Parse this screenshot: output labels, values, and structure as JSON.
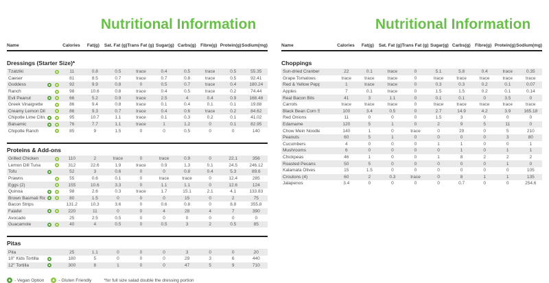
{
  "title": "Nutritional Information",
  "columns": [
    "Name",
    "Calories",
    "Fat(g)",
    "Sat. Fat (g)",
    "Trans Fat (g)",
    "Sugar(g)",
    "Carbs(g)",
    "Fibre(g)",
    "Protein(g)",
    "Sodium(mg)"
  ],
  "legend": {
    "vegan_label": "- Vegan Option",
    "gluten_label": "- Gluten Friendly",
    "footnote": "*for full size salad double the dressing portion"
  },
  "colors": {
    "accent_green": "#6abf4b",
    "vegan_dot": "#55a33c",
    "gluten_dot": "#8dc63f",
    "row_stripe": "#e9e9e9",
    "rule": "#221f1f"
  },
  "pages": [
    {
      "show_legend": true,
      "sections": [
        {
          "title": "Dressings (Starter Size)*",
          "rows": [
            {
              "name": "Tzatziki",
              "vegan": false,
              "gluten": true,
              "values": [
                "11",
                "0.8",
                "0.5",
                "trace",
                "0.4",
                "0.5",
                "trace",
                "0.5",
                "55.35"
              ]
            },
            {
              "name": "Caeser",
              "vegan": false,
              "gluten": false,
              "values": [
                "81",
                "8.5",
                "0.7",
                "trace",
                "0.7",
                "0.8",
                "trace",
                "0.5",
                "92.41"
              ]
            },
            {
              "name": "Goddess",
              "vegan": true,
              "gluten": true,
              "values": [
                "92",
                "9.9",
                "0.8",
                "0",
                "0.5",
                "0.7",
                "trace",
                "0.4",
                "180.24"
              ]
            },
            {
              "name": "Ranch",
              "vegan": false,
              "gluten": true,
              "values": [
                "98",
                "10.6",
                "0.8",
                "trace",
                "0.4",
                "0.5",
                "trace",
                "0.2",
                "74.44"
              ]
            },
            {
              "name": "Evil Peanut",
              "vegan": true,
              "gluten": true,
              "values": [
                "66",
                "5.2",
                "0.9",
                "trace",
                "2.5",
                "4",
                "0.4",
                "0.9",
                "168.48"
              ]
            },
            {
              "name": "Greek Vinaigrette",
              "vegan": false,
              "gluten": true,
              "values": [
                "86",
                "9.4",
                "0.8",
                "trace",
                "0.1",
                "0.4",
                "0.1",
                "0.1",
                "19.88"
              ]
            },
            {
              "name": "Creamy Lemon Dill",
              "vegan": false,
              "gluten": true,
              "values": [
                "86",
                "9.3",
                "0.7",
                "trace",
                "0.4",
                "0.6",
                "trace",
                "0.2",
                "84.62"
              ]
            },
            {
              "name": "Chipotle Lime Citrus",
              "vegan": true,
              "gluten": true,
              "values": [
                "95",
                "10.7",
                "1.1",
                "trace",
                "0.1",
                "0.3",
                "0.2",
                "0.1",
                "41.02"
              ]
            },
            {
              "name": "Balsamic",
              "vegan": true,
              "gluten": true,
              "values": [
                "76",
                "7.7",
                "1.1",
                "trace",
                "1",
                "1.2",
                "0",
                "0.1",
                "82.95"
              ]
            },
            {
              "name": "Chipotle Ranch",
              "vegan": false,
              "gluten": true,
              "values": [
                "85",
                "9",
                "1.5",
                "0",
                "0",
                "0.5",
                "0",
                "0",
                "140"
              ]
            }
          ]
        },
        {
          "title": "Proteins & Add-ons",
          "rows": [
            {
              "name": "Grilled Chicken",
              "vegan": false,
              "gluten": true,
              "values": [
                "110",
                "2",
                "trace",
                "0",
                "trace",
                "0.9",
                "0",
                "22.1",
                "356"
              ]
            },
            {
              "name": "Lemon Dill Tuna",
              "vegan": false,
              "gluten": true,
              "values": [
                "312",
                "22.6",
                "1.9",
                "trace",
                "0.9",
                "1.3",
                "0.1",
                "24.5",
                "246.12"
              ]
            },
            {
              "name": "Tofu",
              "vegan": true,
              "gluten": false,
              "values": [
                "52",
                "3",
                "0.6",
                "0",
                "0",
                "0.8",
                "0.4",
                "5.3",
                "89.6"
              ]
            },
            {
              "name": "Prawns",
              "vegan": false,
              "gluten": true,
              "values": [
                "55",
                "0.6",
                "0.1",
                "0",
                "trace",
                "trace",
                "0",
                "12.4",
                "285"
              ]
            },
            {
              "name": "Eggs (2)",
              "vegan": false,
              "gluten": true,
              "values": [
                "155",
                "10.6",
                "3.3",
                "0",
                "1.1",
                "1.1",
                "0",
                "12.6",
                "124"
              ]
            },
            {
              "name": "Quinoa",
              "vegan": true,
              "gluten": true,
              "values": [
                "98",
                "2.6",
                "0.3",
                "trace",
                "1.7",
                "15.1",
                "2.1",
                "4.1",
                "133.83"
              ]
            },
            {
              "name": "Brown Basmati Rice",
              "vegan": true,
              "gluten": true,
              "values": [
                "80",
                "1.5",
                "0",
                "0",
                "0",
                "15",
                "0",
                "2",
                "75"
              ]
            },
            {
              "name": "Bacon Strips",
              "vegan": false,
              "gluten": false,
              "values": [
                "131.2",
                "10.3",
                "3.6",
                "0",
                "0.6",
                "0.8",
                "0",
                "8.8",
                "355.8"
              ]
            },
            {
              "name": "Falafel",
              "vegan": true,
              "gluten": true,
              "values": [
                "220",
                "11",
                "0",
                "0",
                "4",
                "28",
                "4",
                "7",
                "390"
              ]
            },
            {
              "name": "Avocado",
              "vegan": false,
              "gluten": false,
              "values": [
                "25",
                "2.5",
                "0.5",
                "0",
                "0",
                "0",
                "0",
                "0",
                "0"
              ]
            },
            {
              "name": "Guacamole",
              "vegan": true,
              "gluten": true,
              "values": [
                "40",
                "4",
                "0.5",
                "0",
                "0.5",
                "3",
                "2",
                "0.5",
                "85"
              ]
            }
          ]
        },
        {
          "title": "Pitas",
          "rows": [
            {
              "name": "Pita",
              "vegan": false,
              "gluten": false,
              "values": [
                "25",
                "1.1",
                "0",
                "0",
                "0",
                "3",
                "0",
                "0",
                "20"
              ]
            },
            {
              "name": "10\" Kids Tortilla",
              "vegan": true,
              "gluten": false,
              "values": [
                "180",
                "5",
                "0",
                "0",
                "0",
                "29",
                "3",
                "6",
                "440"
              ]
            },
            {
              "name": "12\" Tortilla",
              "vegan": true,
              "gluten": false,
              "values": [
                "300",
                "8",
                "1",
                "0",
                "0",
                "47",
                "5",
                "9",
                "710"
              ]
            }
          ]
        }
      ]
    },
    {
      "show_legend": false,
      "sections": [
        {
          "title": "Choppings",
          "rows": [
            {
              "name": "Sun-dried Cranberries",
              "vegan": false,
              "gluten": false,
              "values": [
                "22",
                "0.1",
                "trace",
                "0",
                "5.1",
                "5.8",
                "0.4",
                "trace",
                "0.35"
              ]
            },
            {
              "name": "Grape Tomatoes",
              "vegan": false,
              "gluten": false,
              "values": [
                "trace",
                "trace",
                "trace",
                "0",
                "trace",
                "trace",
                "trace",
                "trace",
                "trace"
              ]
            },
            {
              "name": "Red & Yellow Peppers",
              "vegan": false,
              "gluten": false,
              "values": [
                "1",
                "trace",
                "trace",
                "0",
                "0.3",
                "0.3",
                "0.2",
                "0.1",
                "0.07"
              ]
            },
            {
              "name": "Apples",
              "vegan": false,
              "gluten": false,
              "values": [
                "7",
                "0.1",
                "trace",
                "0",
                "1.5",
                "1.5",
                "0.2",
                "0.1",
                "0.14"
              ]
            },
            {
              "name": "Real Bacon Bits",
              "vegan": false,
              "gluten": false,
              "values": [
                "41",
                "3",
                "1.1",
                "0",
                "0.1",
                "0.1",
                "0",
                "3.5",
                "0"
              ]
            },
            {
              "name": "Carrots",
              "vegan": false,
              "gluten": false,
              "values": [
                "trace",
                "trace",
                "trace",
                "0",
                "trace",
                "trace",
                "trace",
                "trace",
                "trace"
              ]
            },
            {
              "name": "Black Bean Corn Salsa",
              "vegan": false,
              "gluten": false,
              "values": [
                "100",
                "3.4",
                "0.5",
                "0",
                "2.7",
                "14.9",
                "4.2",
                "3.9",
                "165.18"
              ]
            },
            {
              "name": "Red Onions",
              "vegan": false,
              "gluten": false,
              "values": [
                "11",
                "0",
                "0",
                "0",
                "1.5",
                "3",
                "0",
                "0",
                "0"
              ]
            },
            {
              "name": "Edamame",
              "vegan": false,
              "gluten": false,
              "values": [
                "120",
                "5",
                "1",
                "0",
                "2",
                "9",
                "5",
                "11",
                "0"
              ]
            },
            {
              "name": "Chow Mein Noodles",
              "vegan": false,
              "gluten": false,
              "values": [
                "140",
                "1",
                "0",
                "trace",
                "0",
                "29",
                "0",
                "5",
                "210"
              ]
            },
            {
              "name": "Peanuts",
              "vegan": false,
              "gluten": false,
              "values": [
                "60",
                "5",
                "1",
                "0",
                "0",
                "0",
                "0",
                "3",
                "80"
              ]
            },
            {
              "name": "Cucumbers",
              "vegan": false,
              "gluten": false,
              "values": [
                "4",
                "0",
                "0",
                "0",
                "1",
                "1",
                "0",
                "0",
                "1"
              ]
            },
            {
              "name": "Mushrooms",
              "vegan": false,
              "gluten": false,
              "values": [
                "6",
                "0",
                "0",
                "0",
                "0",
                "1",
                "0",
                "1",
                "1"
              ]
            },
            {
              "name": "Chickpeas",
              "vegan": false,
              "gluten": false,
              "values": [
                "46",
                "1",
                "0",
                "0",
                "1",
                "8",
                "2",
                "2",
                "2"
              ]
            },
            {
              "name": "Roasted Pecans",
              "vegan": false,
              "gluten": false,
              "values": [
                "50",
                "5",
                "0",
                "0",
                "0",
                "0",
                "0",
                "1",
                "0"
              ]
            },
            {
              "name": "Kalamata Olives",
              "vegan": false,
              "gluten": false,
              "values": [
                "15",
                "1.5",
                "0",
                "0",
                "0",
                "0",
                "0",
                "0",
                "105"
              ]
            },
            {
              "name": "Croutons (4)",
              "vegan": false,
              "gluten": false,
              "values": [
                "60",
                "2",
                "0.3",
                "trace",
                "0",
                "8",
                "1",
                "1",
                "135"
              ]
            },
            {
              "name": "Jalapenos",
              "vegan": false,
              "gluten": false,
              "values": [
                "3.4",
                "0",
                "0",
                "0",
                "0",
                "0.7",
                "0",
                "0",
                "254.6"
              ]
            }
          ]
        }
      ]
    }
  ]
}
